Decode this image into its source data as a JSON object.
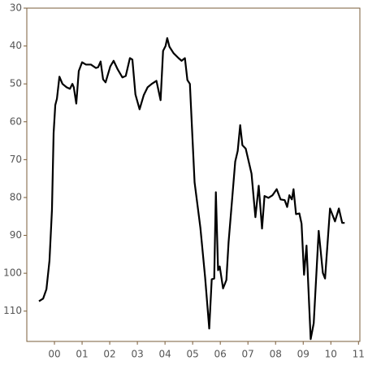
{
  "chart_data": {
    "type": "line",
    "x": [
      -0.56,
      -0.41,
      -0.29,
      -0.18,
      -0.09,
      -0.03,
      0.03,
      0.09,
      0.18,
      0.29,
      0.44,
      0.56,
      0.65,
      0.7,
      0.79,
      0.88,
      1.0,
      1.14,
      1.32,
      1.5,
      1.58,
      1.67,
      1.76,
      1.85,
      2.02,
      2.14,
      2.29,
      2.46,
      2.58,
      2.73,
      2.82,
      2.93,
      3.08,
      3.23,
      3.37,
      3.52,
      3.69,
      3.84,
      3.93,
      4.02,
      4.08,
      4.16,
      4.31,
      4.49,
      4.6,
      4.72,
      4.81,
      4.9,
      5.07,
      5.28,
      5.45,
      5.6,
      5.69,
      5.78,
      5.84,
      5.92,
      5.98,
      6.1,
      6.22,
      6.3,
      6.42,
      6.54,
      6.63,
      6.72,
      6.8,
      6.92,
      7.13,
      7.27,
      7.39,
      7.51,
      7.6,
      7.74,
      7.89,
      8.04,
      8.18,
      8.33,
      8.42,
      8.5,
      8.59,
      8.65,
      8.74,
      8.86,
      8.94,
      9.03,
      9.12,
      9.27,
      9.38,
      9.56,
      9.71,
      9.79,
      9.97,
      10.15,
      10.29,
      10.41,
      10.5
    ],
    "series": [
      {
        "color": "#000000",
        "values": [
          107.4,
          106.7,
          104.2,
          96.7,
          83.3,
          63,
          55.6,
          53.9,
          48.1,
          50,
          50.9,
          51.3,
          50,
          50.9,
          55.2,
          46.6,
          44.3,
          44.9,
          44.9,
          45.8,
          45.6,
          44.1,
          48.8,
          49.6,
          45.4,
          43.9,
          46.2,
          48.3,
          47.9,
          43.2,
          43.6,
          52.8,
          56.7,
          53.0,
          50.9,
          50.0,
          49.2,
          54.3,
          41.3,
          40,
          37.9,
          40.2,
          41.9,
          43.2,
          43.9,
          43.2,
          49,
          50,
          76,
          88,
          101,
          114.6,
          101.6,
          101.4,
          78.6,
          99.2,
          98.2,
          104,
          101.8,
          91.8,
          81.2,
          70.5,
          67.7,
          60.9,
          66.2,
          67.1,
          73.7,
          85.2,
          76.9,
          88.2,
          79.6,
          80.1,
          79.4,
          77.8,
          80.5,
          80.7,
          82.5,
          79.4,
          80.5,
          77.8,
          84.4,
          84.2,
          86.9,
          100.4,
          92.7,
          117.4,
          113.2,
          88.8,
          99.9,
          101.4,
          82.9,
          86.3,
          82.9,
          86.7,
          86.7
        ]
      }
    ],
    "xlim": [
      -1,
      11.05
    ],
    "xticks": [
      {
        "value": 0,
        "label": "00"
      },
      {
        "value": 1,
        "label": "01"
      },
      {
        "value": 2,
        "label": "02"
      },
      {
        "value": 3,
        "label": "03"
      },
      {
        "value": 4,
        "label": "04"
      },
      {
        "value": 5,
        "label": "05"
      },
      {
        "value": 6,
        "label": "06"
      },
      {
        "value": 7,
        "label": "07"
      },
      {
        "value": 8,
        "label": "08"
      },
      {
        "value": 9,
        "label": "09"
      },
      {
        "value": 10,
        "label": "10"
      },
      {
        "value": 11,
        "label": "11"
      }
    ],
    "ylim": [
      30,
      118
    ],
    "y_inverted": true,
    "yticks": [
      30,
      40,
      50,
      60,
      70,
      80,
      90,
      100,
      110
    ],
    "frame_color": "#7a5c3a"
  }
}
